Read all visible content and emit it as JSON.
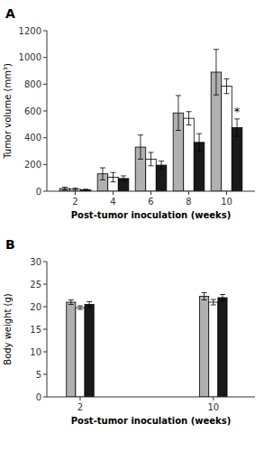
{
  "chart_data": [
    {
      "type": "bar",
      "title": "A",
      "x_label": "Post-tumor inoculation (weeks)",
      "y_label": "Tumor volume (mm³)",
      "x": [
        2,
        4,
        6,
        8,
        10
      ],
      "xlim": [
        0.5,
        11.5
      ],
      "xticks": [
        2,
        4,
        6,
        8,
        10
      ],
      "ylim": [
        0,
        1200
      ],
      "yticks": [
        0,
        200,
        400,
        600,
        800,
        1000,
        1200
      ],
      "series": [
        {
          "color": "#b0b0b0",
          "values": [
            20,
            130,
            330,
            585,
            890
          ],
          "errors": [
            10,
            45,
            90,
            130,
            170
          ]
        },
        {
          "color": "#ffffff",
          "values": [
            15,
            105,
            240,
            545,
            785
          ],
          "errors": [
            8,
            35,
            50,
            50,
            55
          ]
        },
        {
          "color": "#1a1a1a",
          "values": [
            10,
            95,
            195,
            365,
            475
          ],
          "errors": [
            5,
            20,
            30,
            65,
            65
          ]
        }
      ],
      "annotations": [
        {
          "text": "*",
          "x": 10,
          "y": 565
        }
      ],
      "grid": false
    },
    {
      "type": "bar",
      "title": "B",
      "x_label": "Post-tumor inoculation (weeks)",
      "y_label": "Body weight (g)",
      "x": [
        2,
        10
      ],
      "xlim": [
        0.0,
        12.5
      ],
      "xticks": [
        2,
        10
      ],
      "ylim": [
        0,
        30
      ],
      "yticks": [
        0,
        5,
        10,
        15,
        20,
        25,
        30
      ],
      "series": [
        {
          "color": "#b0b0b0",
          "values": [
            21.0,
            22.3
          ],
          "errors": [
            0.5,
            0.8
          ]
        },
        {
          "color": "#ffffff",
          "values": [
            19.8,
            21.0
          ],
          "errors": [
            0.4,
            0.6
          ]
        },
        {
          "color": "#1a1a1a",
          "values": [
            20.5,
            22.0
          ],
          "errors": [
            0.6,
            0.7
          ]
        }
      ],
      "grid": false
    }
  ]
}
